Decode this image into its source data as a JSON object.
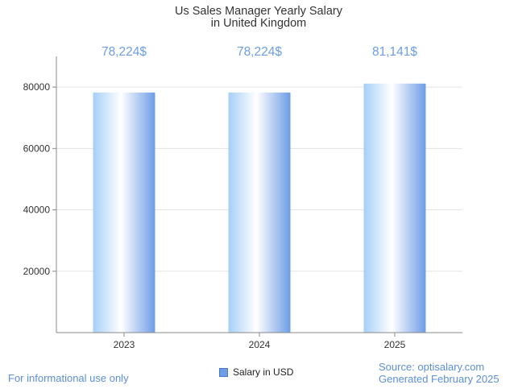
{
  "chart_data": {
    "type": "bar",
    "title": [
      "Us Sales Manager Yearly Salary",
      "in United Kingdom"
    ],
    "categories": [
      "2023",
      "2024",
      "2025"
    ],
    "series": [
      {
        "name": "Salary in USD",
        "values": [
          78224,
          78224,
          81141
        ]
      }
    ],
    "data_labels": [
      "78,224$",
      "78,224$",
      "81,141$"
    ],
    "y_ticks": [
      20000,
      40000,
      60000,
      80000
    ],
    "ylim": [
      0,
      90000
    ],
    "xlabel": "",
    "ylabel": "",
    "legend": "bottom-center",
    "grid": true,
    "colors": {
      "bar_light": "#ffffff",
      "bar_mid": "#a6cff7",
      "bar_dark": "#6d9de6",
      "label": "#6d9de6"
    }
  },
  "footer": {
    "disclaimer": "For informational use only",
    "source": "Source: optisalary.com",
    "generated": "Generated February 2025"
  }
}
